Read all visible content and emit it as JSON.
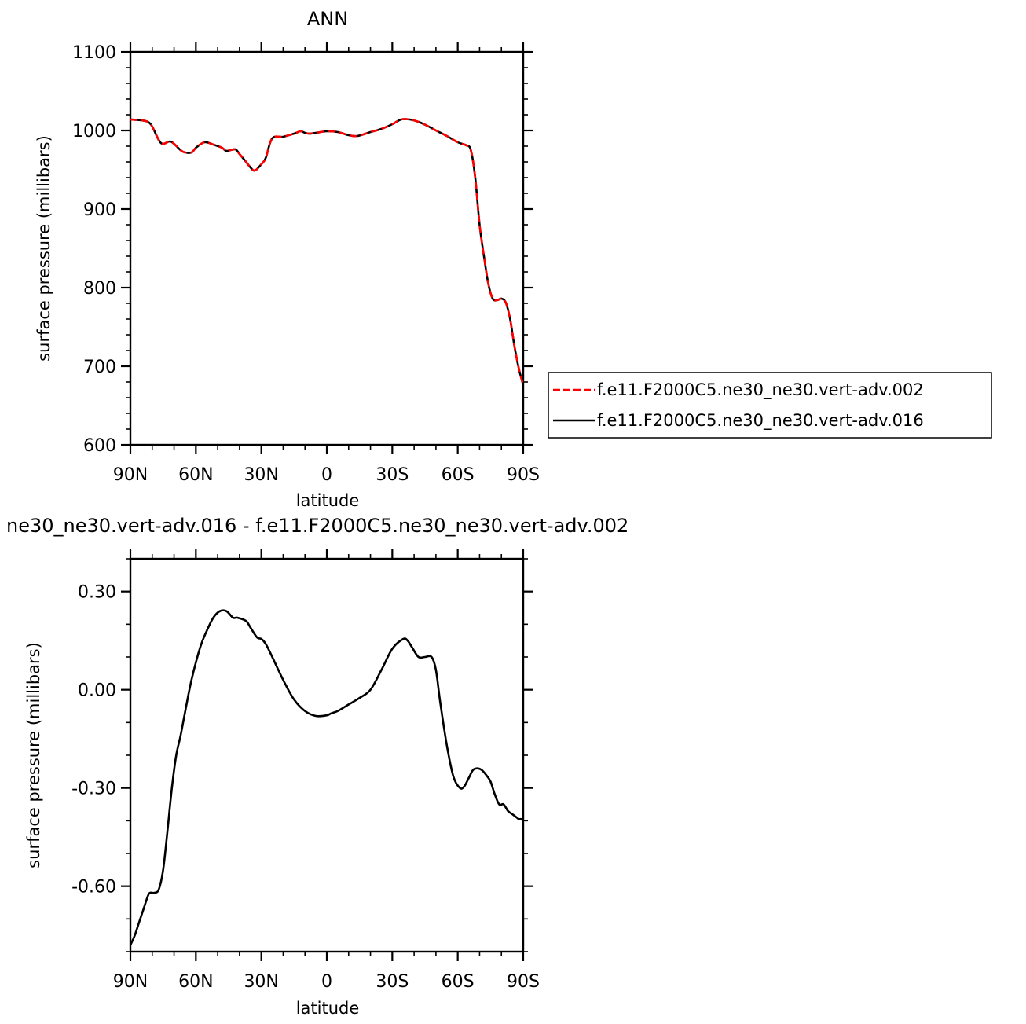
{
  "chart_data": [
    {
      "type": "line",
      "title": "ANN",
      "xlabel": "latitude",
      "ylabel": "surface pressure (millibars)",
      "xlim": [
        90,
        -90
      ],
      "ylim": [
        600,
        1100
      ],
      "xticks": [
        90,
        60,
        30,
        0,
        -30,
        -60,
        -90
      ],
      "xtick_labels": [
        "90N",
        "60N",
        "30N",
        "0",
        "30S",
        "60S",
        "90S"
      ],
      "yticks": [
        600,
        700,
        800,
        900,
        1000,
        1100
      ],
      "ytick_labels": [
        "600",
        "700",
        "800",
        "900",
        "1000",
        "1100"
      ],
      "legend_position": "right",
      "series": [
        {
          "name": "f.e11.F2000C5.ne30_ne30.vert-adv.002",
          "color": "#ff0000",
          "style": "dashed",
          "x": [
            90,
            85,
            82,
            80,
            76,
            72,
            70,
            66,
            62,
            60,
            56,
            52,
            48,
            46,
            42,
            40,
            37,
            35,
            33,
            30,
            28,
            25,
            20,
            15,
            12,
            10,
            8,
            5,
            0,
            -5,
            -10,
            -14,
            -20,
            -25,
            -30,
            -34,
            -38,
            -42,
            -46,
            -50,
            -55,
            -60,
            -64,
            -66,
            -68,
            -70,
            -72,
            -74,
            -76,
            -78,
            -80,
            -82,
            -84,
            -86,
            -88,
            -90
          ],
          "y": [
            1014,
            1013,
            1011,
            1005,
            984,
            986,
            983,
            973,
            972,
            978,
            985,
            982,
            978,
            974,
            976,
            970,
            960,
            953,
            949,
            957,
            965,
            990,
            992,
            996,
            999,
            997,
            996,
            997,
            999,
            998,
            994,
            993,
            998,
            1002,
            1008,
            1014,
            1014,
            1011,
            1006,
            1000,
            993,
            985,
            981,
            975,
            940,
            880,
            840,
            805,
            786,
            784,
            786,
            781,
            760,
            725,
            697,
            676
          ]
        },
        {
          "name": "f.e11.F2000C5.ne30_ne30.vert-adv.016",
          "color": "#000000",
          "style": "solid",
          "x": [
            90,
            85,
            82,
            80,
            76,
            72,
            70,
            66,
            62,
            60,
            56,
            52,
            48,
            46,
            42,
            40,
            37,
            35,
            33,
            30,
            28,
            25,
            20,
            15,
            12,
            10,
            8,
            5,
            0,
            -5,
            -10,
            -14,
            -20,
            -25,
            -30,
            -34,
            -38,
            -42,
            -46,
            -50,
            -55,
            -60,
            -64,
            -66,
            -68,
            -70,
            -72,
            -74,
            -76,
            -78,
            -80,
            -82,
            -84,
            -86,
            -88,
            -90
          ],
          "y": [
            1014,
            1013,
            1011,
            1005,
            984,
            986,
            983,
            973,
            972,
            978,
            985,
            982,
            978,
            974,
            976,
            970,
            960,
            953,
            949,
            957,
            965,
            990,
            992,
            996,
            999,
            997,
            996,
            997,
            999,
            998,
            994,
            993,
            998,
            1002,
            1008,
            1014,
            1014,
            1011,
            1006,
            1000,
            993,
            985,
            981,
            975,
            940,
            880,
            840,
            805,
            786,
            784,
            786,
            781,
            760,
            725,
            697,
            676
          ]
        }
      ]
    },
    {
      "type": "line",
      "title": "ne30_ne30.vert-adv.016 - f.e11.F2000C5.ne30_ne30.vert-adv.002",
      "xlabel": "latitude",
      "ylabel": "surface pressure (millibars)",
      "xlim": [
        90,
        -90
      ],
      "ylim": [
        -0.8,
        0.4
      ],
      "xticks": [
        90,
        60,
        30,
        0,
        -30,
        -60,
        -90
      ],
      "xtick_labels": [
        "90N",
        "60N",
        "30N",
        "0",
        "30S",
        "60S",
        "90S"
      ],
      "yticks": [
        -0.6,
        -0.3,
        0.0,
        0.3
      ],
      "ytick_labels": [
        "-0.60",
        "-0.30",
        "0.00",
        "0.30"
      ],
      "series": [
        {
          "color": "#000000",
          "style": "solid",
          "x": [
            90,
            88,
            86,
            84,
            82,
            81,
            79,
            77,
            75,
            73,
            71,
            69,
            67,
            65,
            62,
            58,
            55,
            52,
            49,
            46,
            43,
            41,
            37,
            35,
            32,
            30,
            28,
            25,
            20,
            15,
            10,
            5,
            0,
            -2,
            -5,
            -10,
            -15,
            -20,
            -25,
            -30,
            -35,
            -37,
            -39,
            -42,
            -45,
            -48,
            -50,
            -52,
            -55,
            -58,
            -61,
            -63,
            -65,
            -67,
            -69,
            -71,
            -73,
            -75,
            -77,
            -79,
            -81,
            -83,
            -85,
            -87,
            -88,
            -89,
            -90
          ],
          "y": [
            -0.78,
            -0.75,
            -0.71,
            -0.67,
            -0.63,
            -0.62,
            -0.62,
            -0.61,
            -0.55,
            -0.43,
            -0.3,
            -0.2,
            -0.14,
            -0.07,
            0.03,
            0.13,
            0.18,
            0.22,
            0.24,
            0.24,
            0.22,
            0.22,
            0.21,
            0.19,
            0.16,
            0.155,
            0.14,
            0.1,
            0.03,
            -0.03,
            -0.065,
            -0.08,
            -0.078,
            -0.072,
            -0.065,
            -0.045,
            -0.025,
            0.0,
            0.06,
            0.125,
            0.155,
            0.15,
            0.13,
            0.1,
            0.1,
            0.1,
            0.06,
            -0.04,
            -0.17,
            -0.265,
            -0.3,
            -0.295,
            -0.27,
            -0.245,
            -0.24,
            -0.245,
            -0.26,
            -0.28,
            -0.32,
            -0.35,
            -0.35,
            -0.37,
            -0.38,
            -0.39,
            -0.395,
            -0.395,
            -0.4
          ]
        }
      ]
    }
  ]
}
